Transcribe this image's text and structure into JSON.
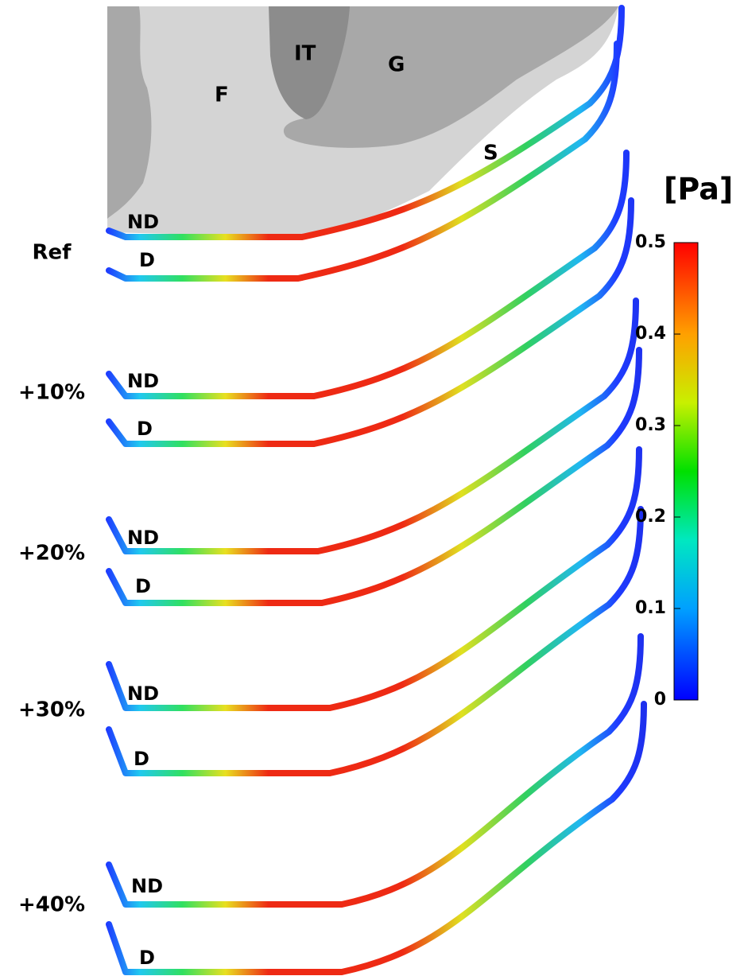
{
  "anatomy_labels": {
    "F": "F",
    "IT": "IT",
    "G": "G",
    "S": "S"
  },
  "colorbar": {
    "unit": "[Pa]",
    "lim": [
      0,
      0.5
    ],
    "ticks": [
      0,
      0.1,
      0.2,
      0.3,
      0.4,
      0.5
    ]
  },
  "rows": [
    {
      "label": "Ref",
      "curves": [
        "ND",
        "D"
      ]
    },
    {
      "label": "+10%",
      "curves": [
        "ND",
        "D"
      ]
    },
    {
      "label": "+20%",
      "curves": [
        "ND",
        "D"
      ]
    },
    {
      "label": "+30%",
      "curves": [
        "ND",
        "D"
      ]
    },
    {
      "label": "+40%",
      "curves": [
        "ND",
        "D"
      ]
    }
  ]
}
